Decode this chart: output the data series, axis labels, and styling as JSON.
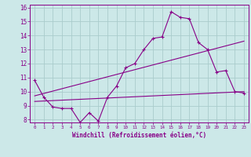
{
  "xlabel": "Windchill (Refroidissement éolien,°C)",
  "xlim": [
    -0.5,
    23.5
  ],
  "ylim": [
    7.8,
    16.2
  ],
  "yticks": [
    8,
    9,
    10,
    11,
    12,
    13,
    14,
    15,
    16
  ],
  "xticks": [
    0,
    1,
    2,
    3,
    4,
    5,
    6,
    7,
    8,
    9,
    10,
    11,
    12,
    13,
    14,
    15,
    16,
    17,
    18,
    19,
    20,
    21,
    22,
    23
  ],
  "background_color": "#cce8e8",
  "line_color": "#880088",
  "grid_color": "#aacccc",
  "line1_x": [
    0,
    1,
    2,
    3,
    4,
    5,
    6,
    7,
    8,
    9,
    10,
    11,
    12,
    13,
    14,
    15,
    16,
    17,
    18,
    19,
    20,
    21,
    22,
    23
  ],
  "line1_y": [
    10.8,
    9.6,
    8.9,
    8.8,
    8.8,
    7.8,
    8.5,
    7.9,
    9.6,
    10.4,
    11.7,
    12.0,
    13.0,
    13.8,
    13.9,
    15.7,
    15.3,
    15.2,
    13.5,
    13.0,
    11.4,
    11.5,
    10.0,
    9.9
  ],
  "line2_x": [
    0,
    23
  ],
  "line2_y": [
    9.3,
    10.0
  ],
  "line3_x": [
    0,
    23
  ],
  "line3_y": [
    9.7,
    13.6
  ]
}
